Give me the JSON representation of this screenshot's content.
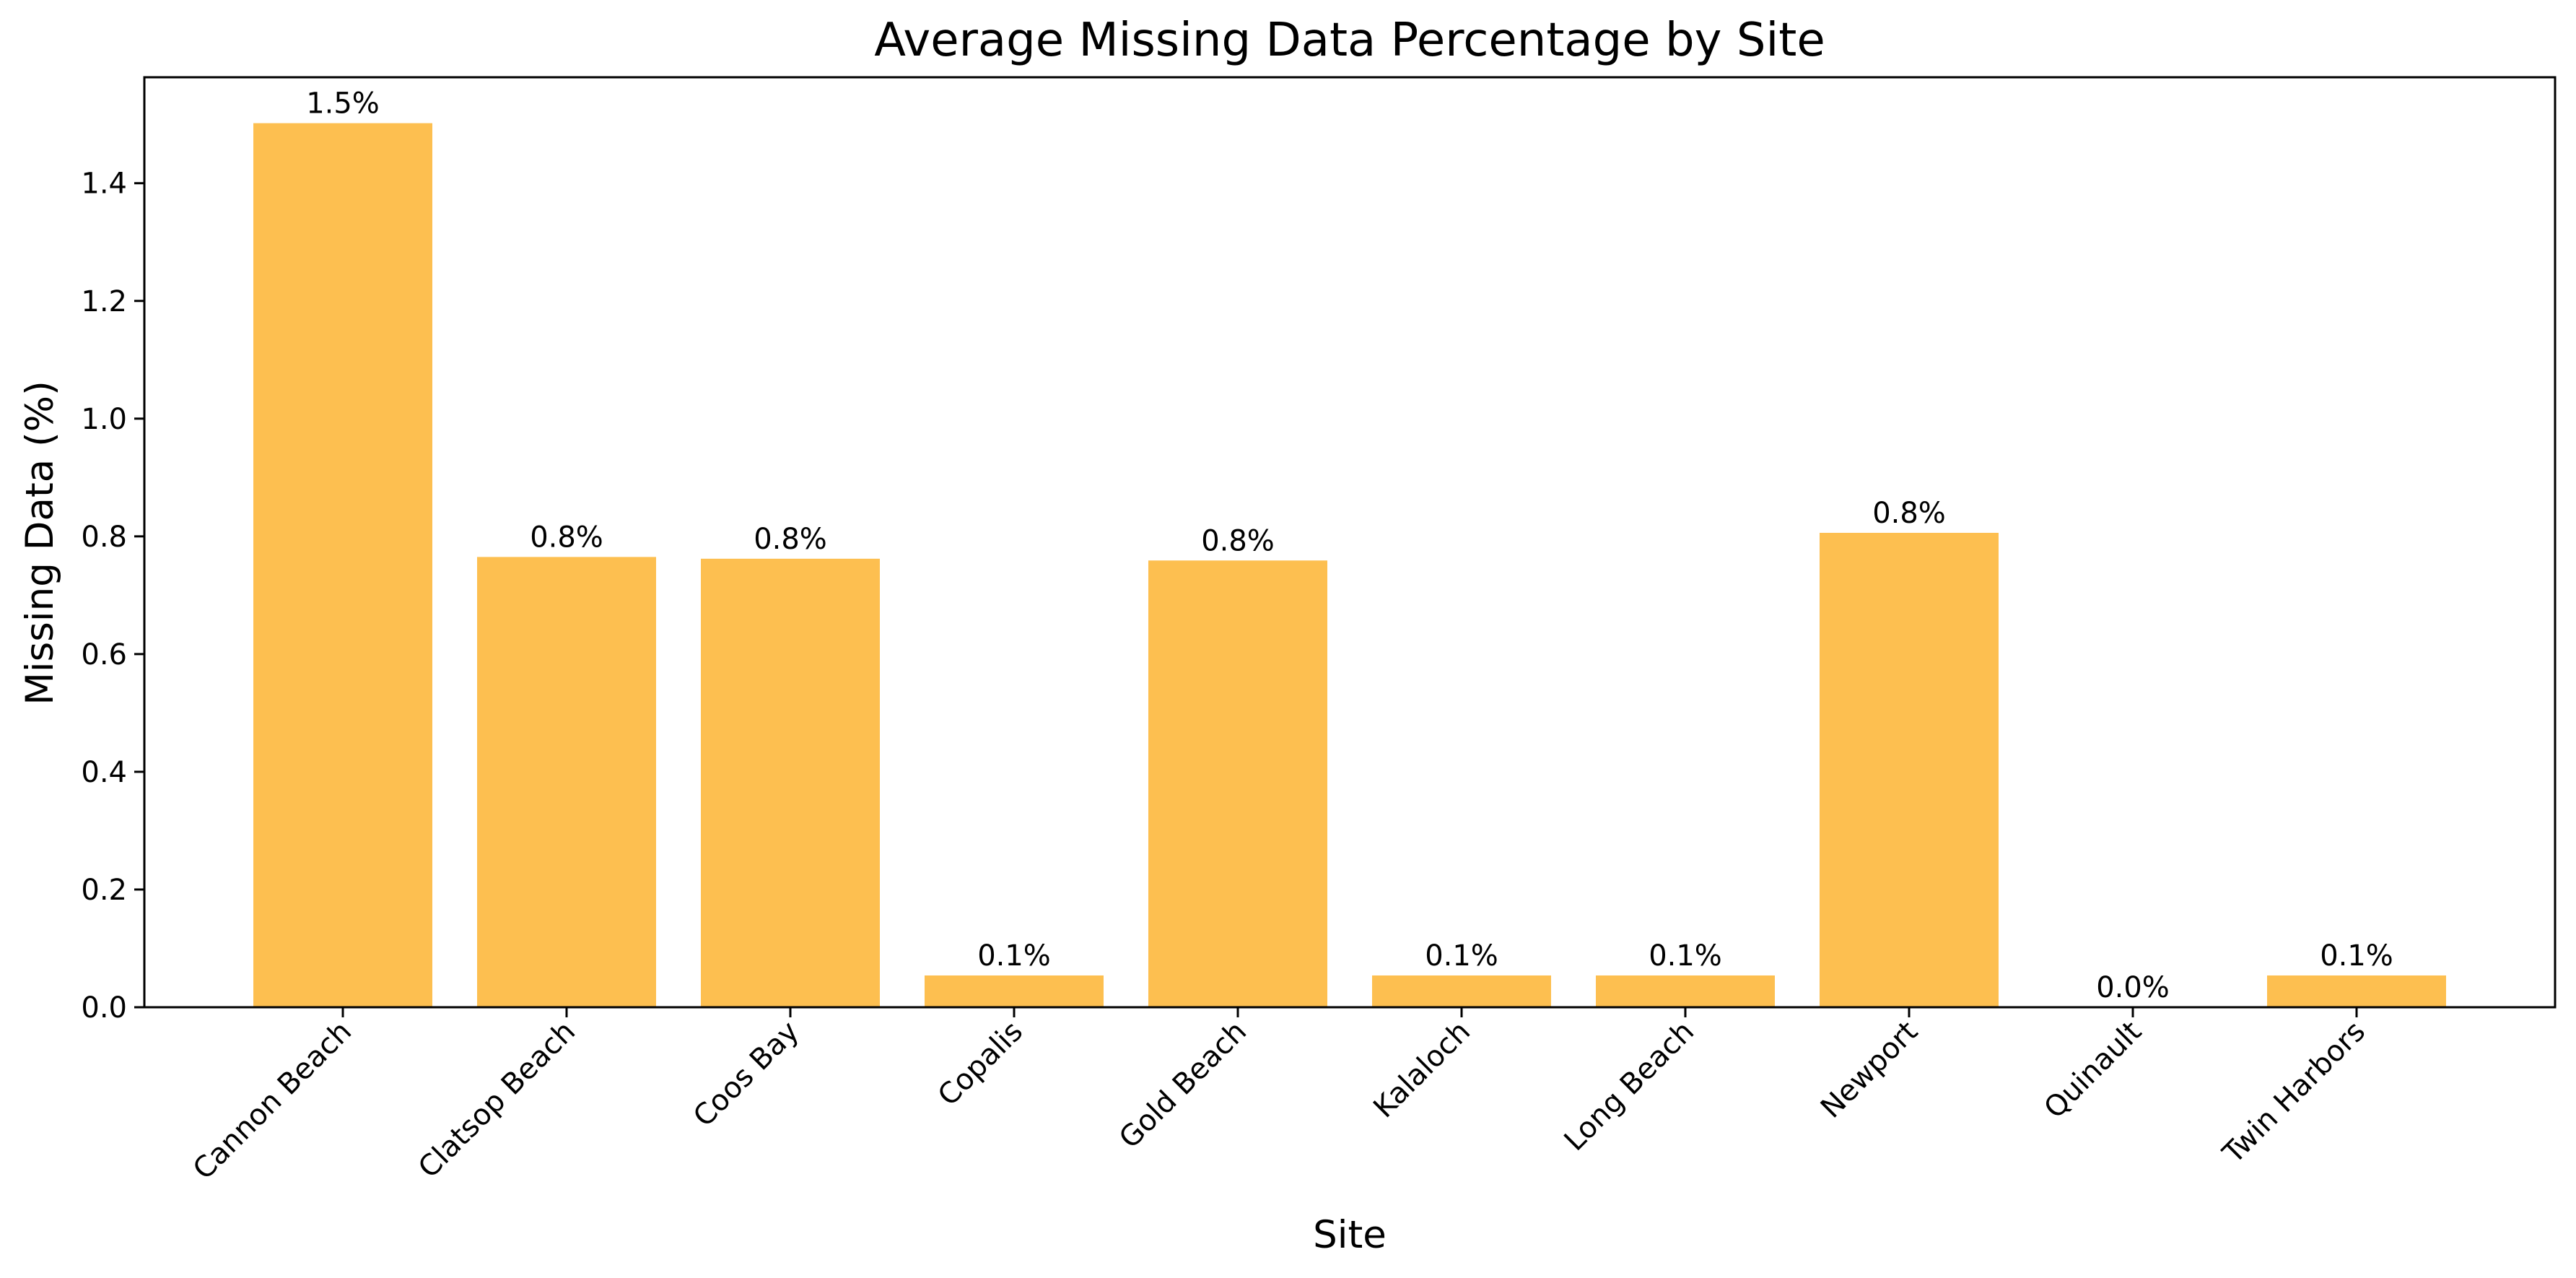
{
  "chart_data": {
    "type": "bar",
    "title": "Average Missing Data Percentage by Site",
    "xlabel": "Site",
    "ylabel": "Missing Data (%)",
    "categories": [
      "Cannon Beach",
      "Clatsop Beach",
      "Coos Bay",
      "Copalis",
      "Gold Beach",
      "Kalaloch",
      "Long Beach",
      "Newport",
      "Quinault",
      "Twin Harbors"
    ],
    "values": [
      1.502,
      0.765,
      0.762,
      0.054,
      0.759,
      0.054,
      0.054,
      0.806,
      0.0,
      0.054
    ],
    "data_labels": [
      "1.5%",
      "0.8%",
      "0.8%",
      "0.1%",
      "0.8%",
      "0.1%",
      "0.1%",
      "0.8%",
      "0.0%",
      "0.1%"
    ],
    "ylim": [
      0,
      1.58
    ],
    "yticks": [
      0.0,
      0.2,
      0.4,
      0.6,
      0.8,
      1.0,
      1.2,
      1.4
    ],
    "ytick_labels": [
      "0.0",
      "0.2",
      "0.4",
      "0.6",
      "0.8",
      "1.0",
      "1.2",
      "1.4"
    ],
    "bar_color": "#fdbf50",
    "grid": false,
    "legend": "none"
  }
}
